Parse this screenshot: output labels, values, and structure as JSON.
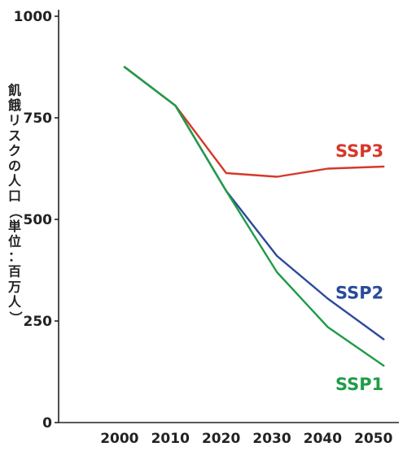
{
  "chart_data": {
    "type": "line",
    "title": "",
    "xlabel": "",
    "ylabel": "飢餓リスクの人口（単位：百万人）",
    "xlim": [
      1988,
      2055
    ],
    "ylim": [
      0,
      1000
    ],
    "x_ticks": [
      2000,
      2010,
      2020,
      2030,
      2040,
      2050
    ],
    "y_ticks": [
      0,
      250,
      500,
      750,
      1000
    ],
    "grid": false,
    "legend": "inline labels at line ends",
    "series": [
      {
        "name": "SSP3",
        "color": "#d7372a",
        "x": [
          2001,
          2011,
          2021,
          2031,
          2041,
          2052
        ],
        "y": [
          875,
          780,
          614,
          605,
          625,
          630
        ]
      },
      {
        "name": "SSP2",
        "color": "#2a4a9a",
        "x": [
          2001,
          2011,
          2021,
          2031,
          2041,
          2052
        ],
        "y": [
          875,
          780,
          570,
          410,
          305,
          205
        ]
      },
      {
        "name": "SSP1",
        "color": "#1f9c48",
        "x": [
          2001,
          2011,
          2021,
          2031,
          2041,
          2052
        ],
        "y": [
          875,
          780,
          570,
          370,
          235,
          140
        ]
      }
    ]
  }
}
